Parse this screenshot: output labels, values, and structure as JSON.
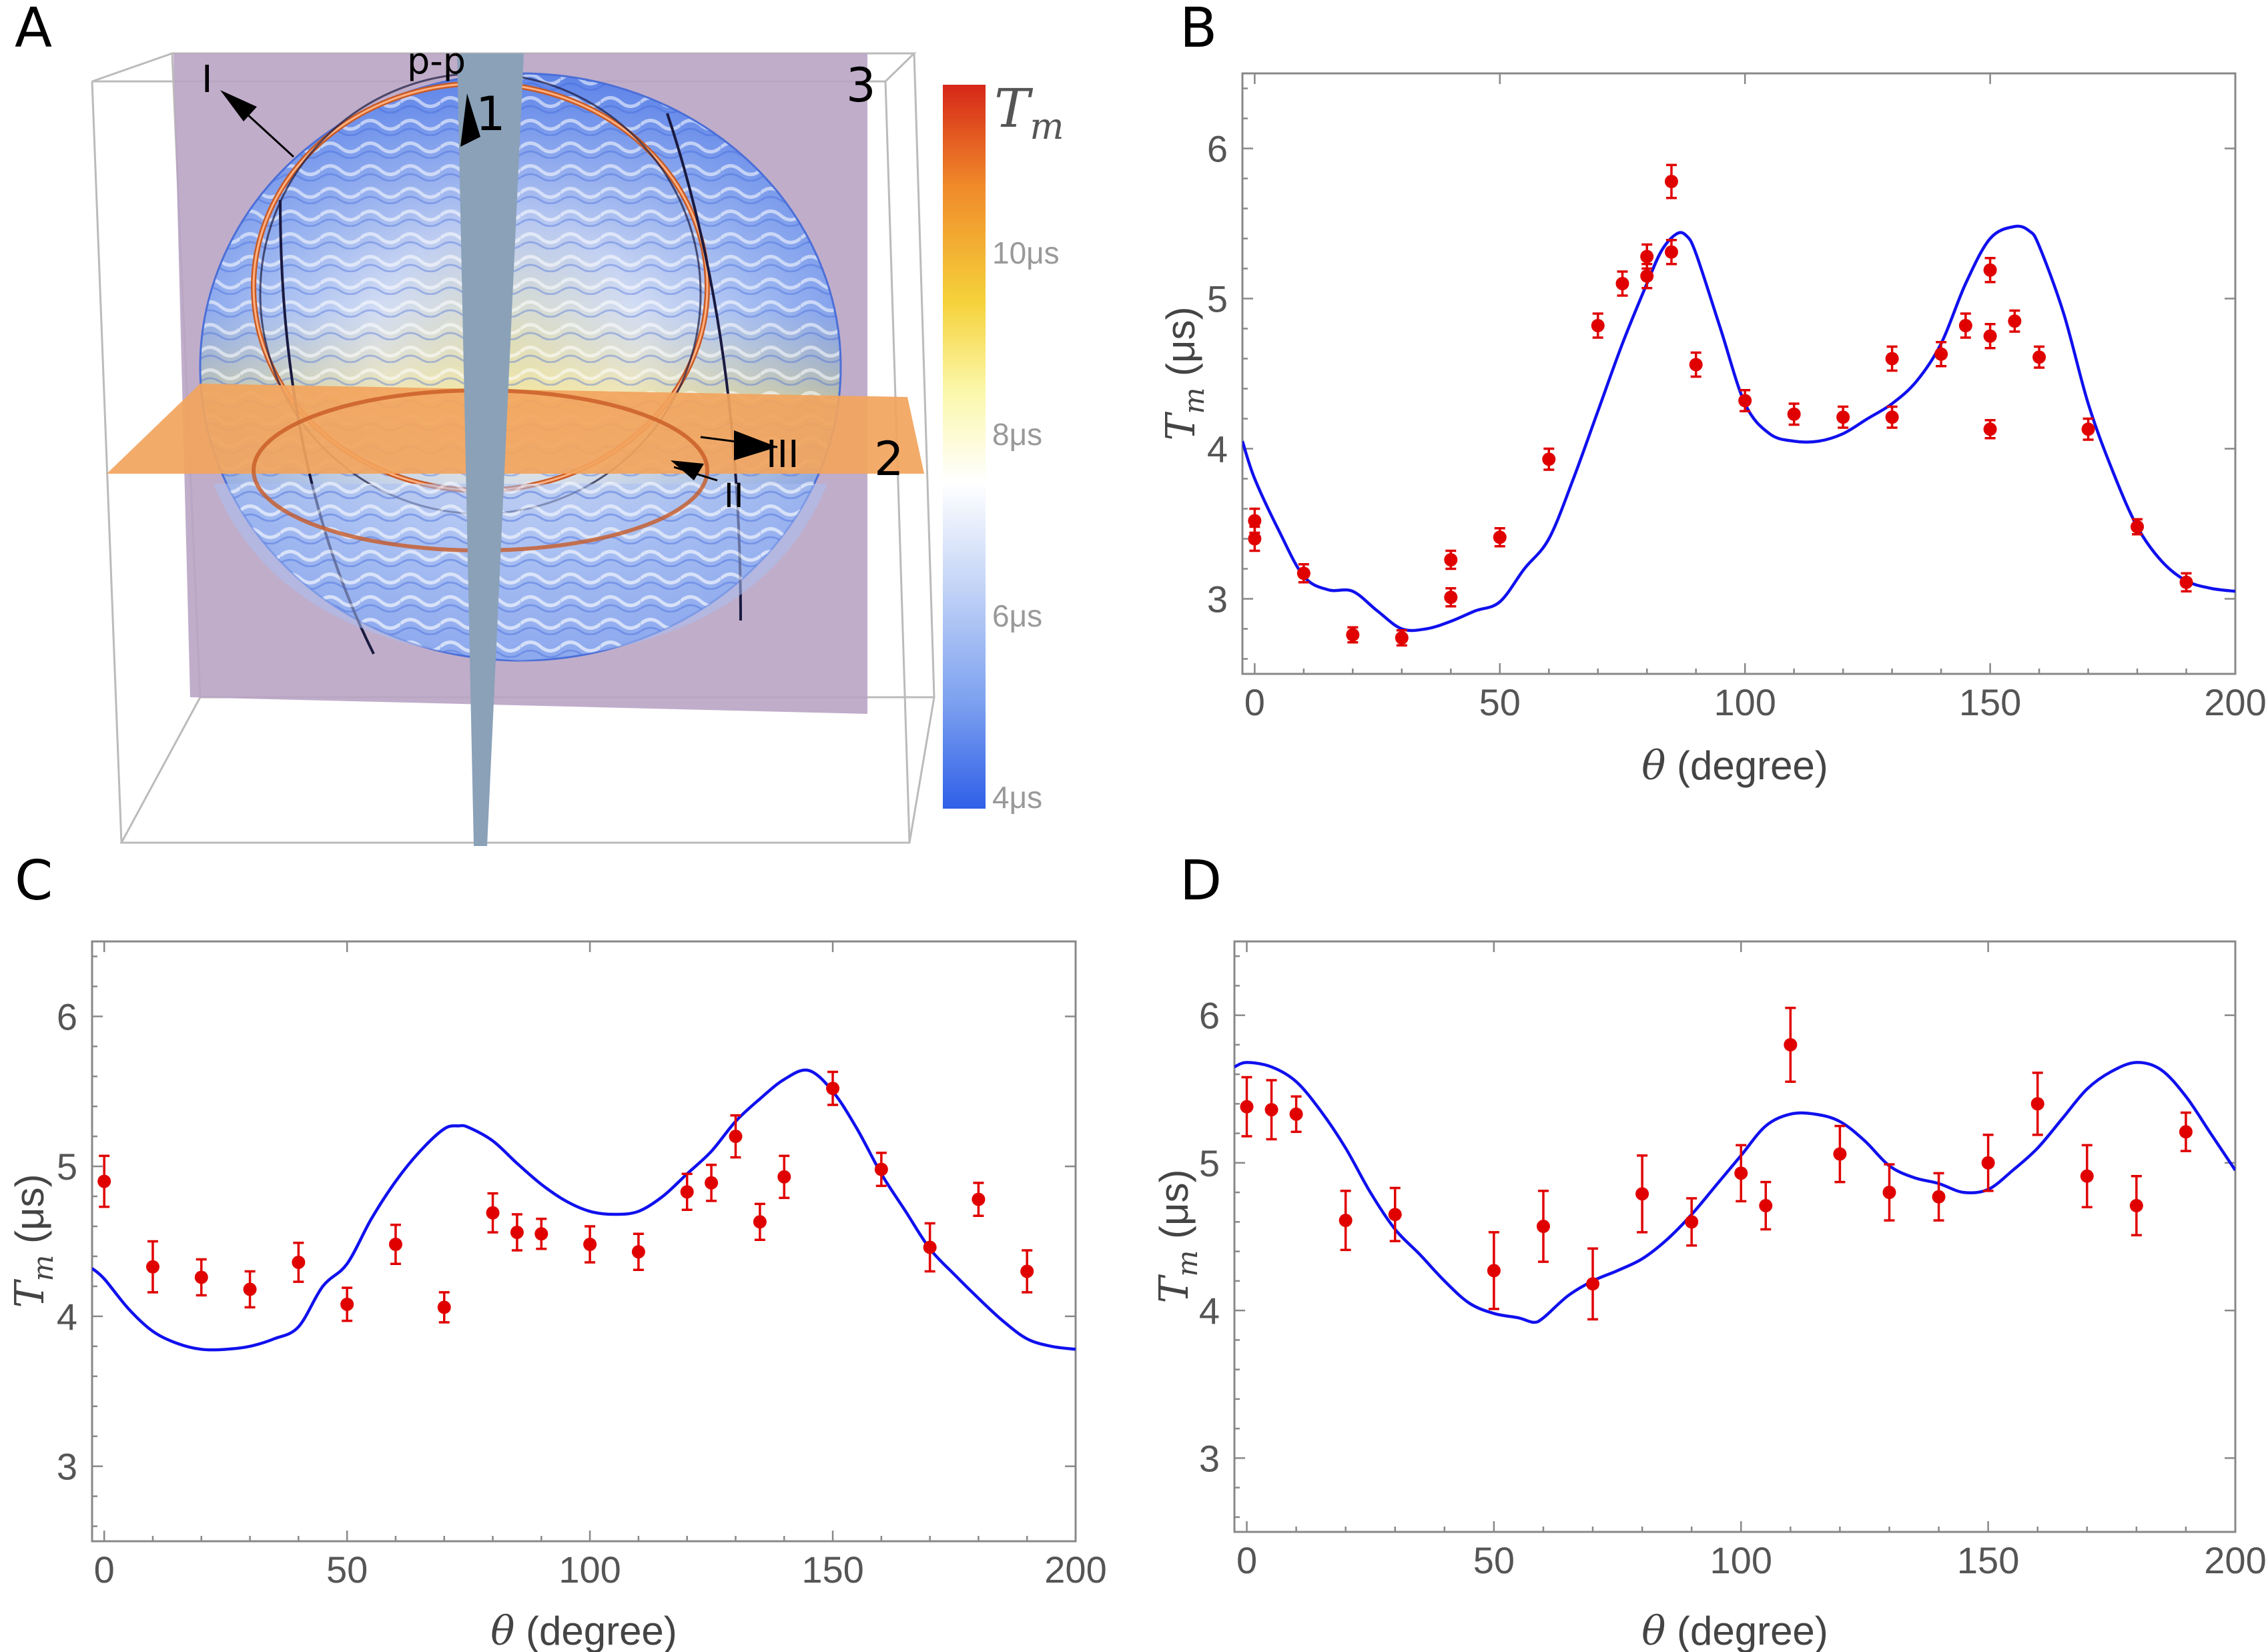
{
  "panels": {
    "A": {
      "letter": "A",
      "plane_labels": [
        "1",
        "2",
        "3"
      ],
      "arrow_labels": [
        "I",
        "II",
        "III"
      ],
      "pp_label": "p-p",
      "colorbar": {
        "title": "T",
        "title_sub": "m",
        "ticks": [
          "10μs",
          "8μs",
          "6μs",
          "4μs"
        ],
        "colors": [
          "#d62718",
          "#f08a2a",
          "#f5d23a",
          "#fbf7a8",
          "#ffffff",
          "#c9d8f7",
          "#7ea2f0",
          "#2f5fe8"
        ]
      }
    },
    "B": {
      "letter": "B"
    },
    "C": {
      "letter": "C"
    },
    "D": {
      "letter": "D"
    }
  },
  "axis_text": {
    "x_symbol": "θ",
    "x_unit": " (degree)",
    "y_symbol": "T",
    "y_sub": "m",
    "y_unit": " (μs)"
  },
  "colors": {
    "fit": "#1010ee",
    "points": "#e00000"
  },
  "chart_data": [
    {
      "id": "B",
      "type": "scatter",
      "title": "",
      "xlabel": "θ (degree)",
      "ylabel": "Tm (μs)",
      "xlim": [
        -2.5,
        200
      ],
      "ylim": [
        2.5,
        6.5
      ],
      "xticks": [
        0,
        50,
        100,
        150,
        200
      ],
      "yticks": [
        3,
        4,
        5,
        6
      ],
      "points": [
        {
          "x": 0,
          "y": 3.52,
          "err": 0.08
        },
        {
          "x": 0,
          "y": 3.4,
          "err": 0.08
        },
        {
          "x": 10,
          "y": 3.17,
          "err": 0.06
        },
        {
          "x": 20,
          "y": 2.76,
          "err": 0.05
        },
        {
          "x": 30,
          "y": 2.74,
          "err": 0.05
        },
        {
          "x": 40,
          "y": 3.26,
          "err": 0.06
        },
        {
          "x": 40,
          "y": 3.01,
          "err": 0.06
        },
        {
          "x": 50,
          "y": 3.41,
          "err": 0.06
        },
        {
          "x": 60,
          "y": 3.93,
          "err": 0.07
        },
        {
          "x": 70,
          "y": 4.82,
          "err": 0.08
        },
        {
          "x": 75,
          "y": 5.1,
          "err": 0.08
        },
        {
          "x": 80,
          "y": 5.28,
          "err": 0.08
        },
        {
          "x": 80,
          "y": 5.15,
          "err": 0.08
        },
        {
          "x": 85,
          "y": 5.78,
          "err": 0.11
        },
        {
          "x": 85,
          "y": 5.31,
          "err": 0.08
        },
        {
          "x": 90,
          "y": 4.56,
          "err": 0.08
        },
        {
          "x": 100,
          "y": 4.32,
          "err": 0.07
        },
        {
          "x": 110,
          "y": 4.23,
          "err": 0.07
        },
        {
          "x": 120,
          "y": 4.21,
          "err": 0.07
        },
        {
          "x": 130,
          "y": 4.6,
          "err": 0.08
        },
        {
          "x": 130,
          "y": 4.21,
          "err": 0.07
        },
        {
          "x": 140,
          "y": 4.63,
          "err": 0.08
        },
        {
          "x": 145,
          "y": 4.82,
          "err": 0.08
        },
        {
          "x": 150,
          "y": 5.19,
          "err": 0.08
        },
        {
          "x": 150,
          "y": 4.75,
          "err": 0.08
        },
        {
          "x": 150,
          "y": 4.13,
          "err": 0.06
        },
        {
          "x": 155,
          "y": 4.85,
          "err": 0.07
        },
        {
          "x": 160,
          "y": 4.61,
          "err": 0.07
        },
        {
          "x": 170,
          "y": 4.13,
          "err": 0.07
        },
        {
          "x": 180,
          "y": 3.48,
          "err": 0.05
        },
        {
          "x": 190,
          "y": 3.11,
          "err": 0.06
        }
      ],
      "fit": {
        "x": [
          -2.5,
          0,
          5,
          10,
          15,
          20,
          25,
          30,
          35,
          40,
          45,
          50,
          55,
          60,
          65,
          70,
          75,
          80,
          83,
          86,
          88,
          90,
          95,
          100,
          105,
          110,
          115,
          120,
          125,
          130,
          135,
          140,
          145,
          150,
          155,
          158,
          160,
          165,
          170,
          175,
          180,
          185,
          190,
          195,
          200
        ],
        "y": [
          4.05,
          3.8,
          3.45,
          3.15,
          3.06,
          3.05,
          2.92,
          2.8,
          2.8,
          2.85,
          2.92,
          2.98,
          3.2,
          3.4,
          3.8,
          4.25,
          4.7,
          5.1,
          5.32,
          5.43,
          5.42,
          5.3,
          4.8,
          4.3,
          4.1,
          4.05,
          4.05,
          4.1,
          4.2,
          4.3,
          4.45,
          4.7,
          5.1,
          5.4,
          5.48,
          5.45,
          5.35,
          4.9,
          4.3,
          3.85,
          3.48,
          3.25,
          3.12,
          3.07,
          3.05
        ]
      }
    },
    {
      "id": "C",
      "type": "scatter",
      "title": "",
      "xlabel": "θ (degree)",
      "ylabel": "Tm (μs)",
      "xlim": [
        -2.5,
        200
      ],
      "ylim": [
        2.5,
        6.5
      ],
      "xticks": [
        0,
        50,
        100,
        150,
        200
      ],
      "yticks": [
        3,
        4,
        5,
        6
      ],
      "points": [
        {
          "x": 0,
          "y": 4.9,
          "err": 0.17
        },
        {
          "x": 10,
          "y": 4.33,
          "err": 0.17
        },
        {
          "x": 20,
          "y": 4.26,
          "err": 0.12
        },
        {
          "x": 30,
          "y": 4.18,
          "err": 0.12
        },
        {
          "x": 40,
          "y": 4.36,
          "err": 0.13
        },
        {
          "x": 50,
          "y": 4.08,
          "err": 0.11
        },
        {
          "x": 60,
          "y": 4.48,
          "err": 0.13
        },
        {
          "x": 70,
          "y": 4.06,
          "err": 0.1
        },
        {
          "x": 80,
          "y": 4.69,
          "err": 0.13
        },
        {
          "x": 85,
          "y": 4.56,
          "err": 0.12
        },
        {
          "x": 90,
          "y": 4.55,
          "err": 0.1
        },
        {
          "x": 100,
          "y": 4.48,
          "err": 0.12
        },
        {
          "x": 110,
          "y": 4.43,
          "err": 0.12
        },
        {
          "x": 120,
          "y": 4.83,
          "err": 0.12
        },
        {
          "x": 125,
          "y": 4.89,
          "err": 0.12
        },
        {
          "x": 130,
          "y": 5.2,
          "err": 0.14
        },
        {
          "x": 135,
          "y": 4.63,
          "err": 0.12
        },
        {
          "x": 140,
          "y": 4.93,
          "err": 0.14
        },
        {
          "x": 150,
          "y": 5.52,
          "err": 0.11
        },
        {
          "x": 160,
          "y": 4.98,
          "err": 0.11
        },
        {
          "x": 170,
          "y": 4.46,
          "err": 0.16
        },
        {
          "x": 180,
          "y": 4.78,
          "err": 0.11
        },
        {
          "x": 190,
          "y": 4.3,
          "err": 0.14
        }
      ],
      "fit": {
        "x": [
          -2.5,
          0,
          5,
          10,
          15,
          20,
          25,
          30,
          35,
          40,
          45,
          50,
          55,
          60,
          65,
          70,
          73,
          75,
          80,
          85,
          90,
          95,
          100,
          105,
          110,
          115,
          120,
          125,
          130,
          135,
          140,
          145,
          150,
          155,
          160,
          165,
          170,
          175,
          180,
          185,
          190,
          195,
          200
        ],
        "y": [
          4.32,
          4.25,
          4.05,
          3.9,
          3.82,
          3.78,
          3.78,
          3.8,
          3.85,
          3.93,
          4.2,
          4.35,
          4.65,
          4.9,
          5.1,
          5.25,
          5.27,
          5.26,
          5.17,
          5.02,
          4.88,
          4.77,
          4.7,
          4.68,
          4.7,
          4.8,
          4.95,
          5.1,
          5.3,
          5.45,
          5.58,
          5.64,
          5.5,
          5.25,
          4.95,
          4.7,
          4.45,
          4.28,
          4.12,
          3.97,
          3.85,
          3.8,
          3.78
        ]
      }
    },
    {
      "id": "D",
      "type": "scatter",
      "title": "",
      "xlabel": "θ (degree)",
      "ylabel": "Tm (μs)",
      "xlim": [
        -2.5,
        200
      ],
      "ylim": [
        2.5,
        6.5
      ],
      "xticks": [
        0,
        50,
        100,
        150,
        200
      ],
      "yticks": [
        3,
        4,
        5,
        6
      ],
      "points": [
        {
          "x": 0,
          "y": 5.38,
          "err": 0.2
        },
        {
          "x": 5,
          "y": 5.36,
          "err": 0.2
        },
        {
          "x": 10,
          "y": 5.33,
          "err": 0.12
        },
        {
          "x": 20,
          "y": 4.61,
          "err": 0.2
        },
        {
          "x": 30,
          "y": 4.65,
          "err": 0.18
        },
        {
          "x": 50,
          "y": 4.27,
          "err": 0.26
        },
        {
          "x": 60,
          "y": 4.57,
          "err": 0.24
        },
        {
          "x": 70,
          "y": 4.18,
          "err": 0.24
        },
        {
          "x": 80,
          "y": 4.79,
          "err": 0.26
        },
        {
          "x": 90,
          "y": 4.6,
          "err": 0.16
        },
        {
          "x": 100,
          "y": 4.93,
          "err": 0.19
        },
        {
          "x": 105,
          "y": 4.71,
          "err": 0.16
        },
        {
          "x": 110,
          "y": 5.8,
          "err": 0.25
        },
        {
          "x": 120,
          "y": 5.06,
          "err": 0.19
        },
        {
          "x": 130,
          "y": 4.8,
          "err": 0.19
        },
        {
          "x": 140,
          "y": 4.77,
          "err": 0.16
        },
        {
          "x": 150,
          "y": 5.0,
          "err": 0.19
        },
        {
          "x": 160,
          "y": 5.4,
          "err": 0.21
        },
        {
          "x": 170,
          "y": 4.91,
          "err": 0.21
        },
        {
          "x": 180,
          "y": 4.71,
          "err": 0.2
        },
        {
          "x": 190,
          "y": 5.21,
          "err": 0.13
        }
      ],
      "fit": {
        "x": [
          -2.5,
          0,
          5,
          10,
          15,
          20,
          25,
          30,
          35,
          40,
          45,
          50,
          55,
          58,
          60,
          65,
          70,
          75,
          80,
          85,
          90,
          95,
          100,
          105,
          110,
          115,
          120,
          125,
          130,
          135,
          140,
          145,
          150,
          155,
          160,
          165,
          170,
          175,
          180,
          185,
          190,
          195,
          200
        ],
        "y": [
          5.65,
          5.68,
          5.65,
          5.55,
          5.35,
          5.1,
          4.8,
          4.55,
          4.38,
          4.2,
          4.05,
          3.98,
          3.95,
          3.92,
          3.95,
          4.1,
          4.2,
          4.27,
          4.35,
          4.48,
          4.65,
          4.85,
          5.05,
          5.25,
          5.33,
          5.33,
          5.28,
          5.15,
          4.98,
          4.9,
          4.86,
          4.8,
          4.82,
          4.95,
          5.1,
          5.3,
          5.5,
          5.62,
          5.68,
          5.63,
          5.45,
          5.2,
          4.95
        ]
      }
    }
  ]
}
